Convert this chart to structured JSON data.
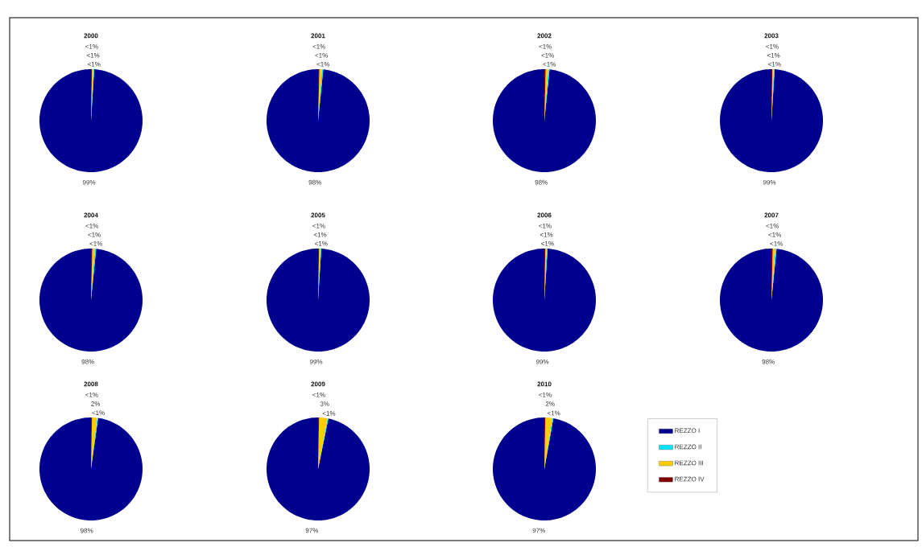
{
  "chart_data": [
    {
      "type": "pie",
      "title": "2000",
      "categories": [
        null,
        null,
        null,
        null
      ],
      "values": [
        99.0,
        0.3,
        0.4,
        0.3
      ],
      "value_labels": [
        "99%",
        "<1%",
        "<1%",
        "<1%"
      ],
      "colors": [
        "#00008f",
        "#00e5ff",
        "#ffcc00",
        "#800000"
      ]
    },
    {
      "type": "pie",
      "title": "2001",
      "categories": [
        null,
        null,
        null,
        null
      ],
      "values": [
        98.4,
        0.4,
        0.8,
        0.4
      ],
      "value_labels": [
        "98%",
        "<1%",
        "<1%",
        "<1%"
      ],
      "colors": [
        "#00008f",
        "#00e5ff",
        "#ffcc00",
        "#800000"
      ]
    },
    {
      "type": "pie",
      "title": "2002",
      "categories": [
        null,
        null,
        null,
        null
      ],
      "values": [
        98.4,
        0.4,
        0.8,
        0.4
      ],
      "value_labels": [
        "98%",
        "<1%",
        "<1%",
        "<1%"
      ],
      "colors": [
        "#00008f",
        "#00e5ff",
        "#ffcc00",
        "#800000"
      ]
    },
    {
      "type": "pie",
      "title": "2003",
      "categories": [
        null,
        null,
        null,
        null
      ],
      "values": [
        99.0,
        0.3,
        0.4,
        0.3
      ],
      "value_labels": [
        "99%",
        "<1%",
        "<1%",
        "<1%"
      ],
      "colors": [
        "#00008f",
        "#00e5ff",
        "#ffcc00",
        "#800000"
      ]
    },
    {
      "type": "pie",
      "title": "2004",
      "categories": [
        null,
        null,
        null,
        null
      ],
      "values": [
        98.4,
        0.4,
        0.8,
        0.4
      ],
      "value_labels": [
        "98%",
        "<1%",
        "<1%",
        "<1%"
      ],
      "colors": [
        "#00008f",
        "#00e5ff",
        "#ffcc00",
        "#800000"
      ]
    },
    {
      "type": "pie",
      "title": "2005",
      "categories": [
        null,
        null,
        null,
        null
      ],
      "values": [
        99.0,
        0.3,
        0.4,
        0.3
      ],
      "value_labels": [
        "99%",
        "<1%",
        "<1%",
        "<1%"
      ],
      "colors": [
        "#00008f",
        "#00e5ff",
        "#ffcc00",
        "#800000"
      ]
    },
    {
      "type": "pie",
      "title": "2006",
      "categories": [
        null,
        null,
        null,
        null
      ],
      "values": [
        99.0,
        0.3,
        0.4,
        0.3
      ],
      "value_labels": [
        "99%",
        "<1%",
        "<1%",
        "<1%"
      ],
      "colors": [
        "#00008f",
        "#00e5ff",
        "#ffcc00",
        "#800000"
      ]
    },
    {
      "type": "pie",
      "title": "2007",
      "categories": [
        null,
        null,
        null,
        null
      ],
      "values": [
        98.4,
        0.4,
        0.8,
        0.4
      ],
      "value_labels": [
        "98%",
        "<1%",
        "<1%",
        "<1%"
      ],
      "colors": [
        "#00008f",
        "#00e5ff",
        "#ffcc00",
        "#800000"
      ]
    },
    {
      "type": "pie",
      "title": "2008",
      "categories": [
        null,
        null,
        null,
        null
      ],
      "values": [
        97.8,
        0.3,
        1.6,
        0.3
      ],
      "value_labels": [
        "98%",
        "<1%",
        "2%",
        "<1%"
      ],
      "colors": [
        "#00008f",
        "#00e5ff",
        "#ffcc00",
        "#800000"
      ]
    },
    {
      "type": "pie",
      "title": "2009",
      "categories": [
        null,
        null,
        null,
        null
      ],
      "values": [
        96.8,
        0.3,
        2.6,
        0.3
      ],
      "value_labels": [
        "97%",
        "<1%",
        "3%",
        "<1%"
      ],
      "colors": [
        "#00008f",
        "#00e5ff",
        "#ffcc00",
        "#800000"
      ]
    },
    {
      "type": "pie",
      "title": "2010",
      "categories": [
        "REZZO I",
        "REZZO II",
        "REZZO III",
        "REZZO IV"
      ],
      "values": [
        97.2,
        0.3,
        2.2,
        0.3
      ],
      "value_labels": [
        "97%",
        "<1%",
        "2%",
        "<1%"
      ],
      "colors": [
        "#00008f",
        "#00e5ff",
        "#ffcc00",
        "#800000"
      ],
      "legend": "right"
    }
  ]
}
